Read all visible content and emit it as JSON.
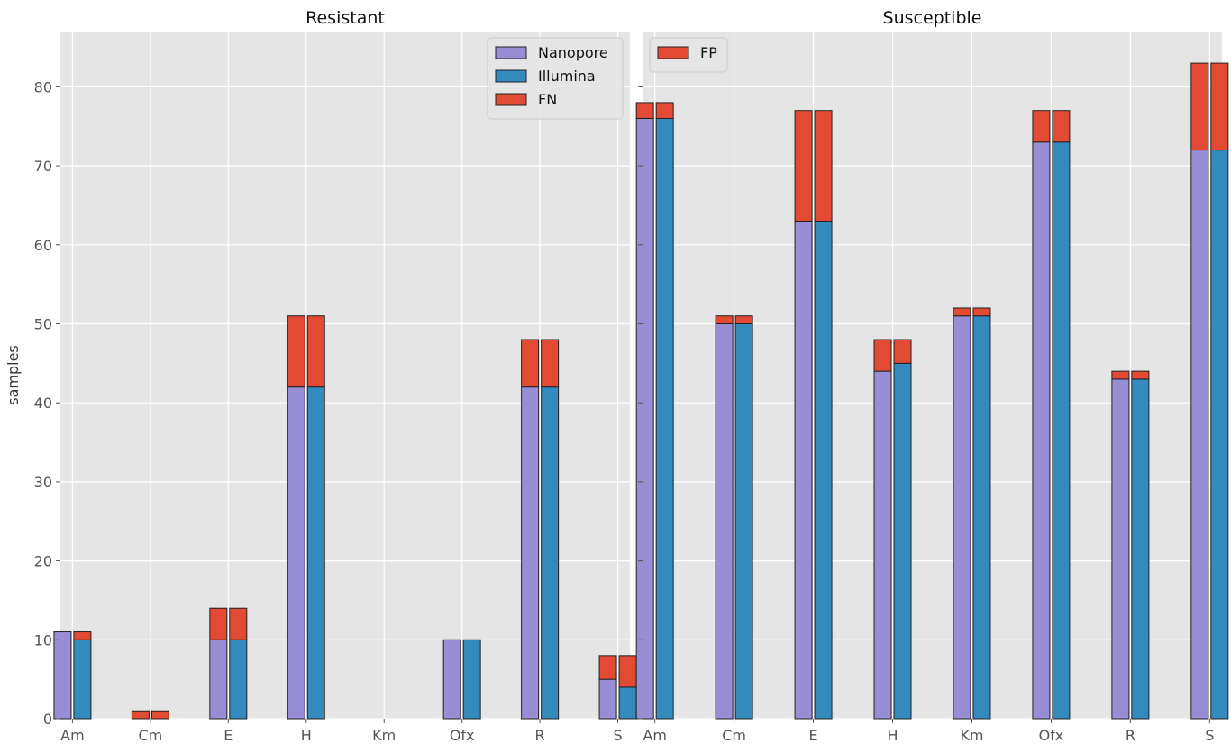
{
  "colors": {
    "nanopore": "#988ED5",
    "illumina": "#348ABD",
    "fn_fp": "#E24A33",
    "plot_bg": "#E5E5E5",
    "grid": "#FFFFFF",
    "bar_edge": "#222222"
  },
  "chart_data": [
    {
      "type": "bar",
      "title": "Resistant",
      "ylabel": "samples",
      "xlabel": "",
      "ylim": [
        0,
        87
      ],
      "yticks": [
        0,
        10,
        20,
        30,
        40,
        50,
        60,
        70,
        80
      ],
      "categories": [
        "Am",
        "Cm",
        "E",
        "H",
        "Km",
        "Ofx",
        "R",
        "S"
      ],
      "grouping": "two stacked bars per category (Nanopore, Illumina), each topped with FN",
      "series": [
        {
          "name": "Nanopore",
          "values": [
            11,
            0,
            10,
            42,
            0,
            10,
            42,
            5
          ]
        },
        {
          "name": "Illumina",
          "values": [
            10,
            0,
            10,
            42,
            0,
            10,
            42,
            4
          ]
        },
        {
          "name": "FN",
          "stack_on": "Nanopore",
          "values": [
            0,
            1,
            4,
            9,
            0,
            0,
            6,
            3
          ]
        },
        {
          "name": "FN",
          "stack_on": "Illumina",
          "values": [
            1,
            1,
            4,
            9,
            0,
            0,
            6,
            4
          ]
        }
      ],
      "legend": {
        "placement": "top-right",
        "entries": [
          "Nanopore",
          "Illumina",
          "FN"
        ]
      },
      "grid": true
    },
    {
      "type": "bar",
      "title": "Susceptible",
      "ylabel": "",
      "xlabel": "",
      "ylim": [
        0,
        87
      ],
      "yticks": [
        0,
        10,
        20,
        30,
        40,
        50,
        60,
        70,
        80
      ],
      "categories": [
        "Am",
        "Cm",
        "E",
        "H",
        "Km",
        "Ofx",
        "R",
        "S"
      ],
      "grouping": "two stacked bars per category (Nanopore, Illumina), each topped with FP",
      "series": [
        {
          "name": "Nanopore",
          "values": [
            76,
            50,
            63,
            44,
            51,
            73,
            43,
            72
          ]
        },
        {
          "name": "Illumina",
          "values": [
            76,
            50,
            63,
            45,
            51,
            73,
            43,
            72
          ]
        },
        {
          "name": "FP",
          "stack_on": "Nanopore",
          "values": [
            2,
            1,
            14,
            4,
            1,
            4,
            1,
            11
          ]
        },
        {
          "name": "FP",
          "stack_on": "Illumina",
          "values": [
            2,
            1,
            14,
            3,
            1,
            4,
            1,
            11
          ]
        }
      ],
      "legend": {
        "placement": "top-left",
        "entries": [
          "FP"
        ]
      },
      "grid": true
    }
  ]
}
